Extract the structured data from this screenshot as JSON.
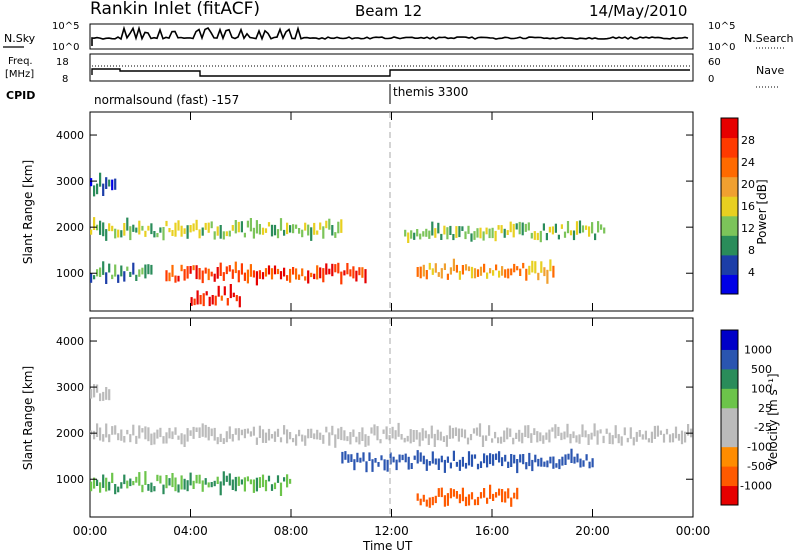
{
  "header": {
    "station": "Rankin Inlet (fitACF)",
    "beam": "Beam 12",
    "date": "14/May/2010"
  },
  "panels": {
    "nsky": {
      "label": "N.Sky",
      "ticks": [
        "10^5",
        "10^0"
      ],
      "right_label": "N.Search",
      "right_ticks": [
        "10^5",
        "10^0"
      ]
    },
    "freq": {
      "label_line1": "Freq.",
      "label_line2": "[MHz]",
      "ticks": [
        "18",
        "8"
      ],
      "right_label": "Nave",
      "right_ticks": [
        "60",
        "0"
      ]
    },
    "cpid": {
      "label": "CPID",
      "segments": [
        "normalsound (fast) -157",
        "themis 3300"
      ]
    }
  },
  "colors": {
    "power": [
      "#0000e6",
      "#1c3ea8",
      "#2a8c5a",
      "#7cc45a",
      "#e8d020",
      "#f0a030",
      "#ff6a00",
      "#ff3a00",
      "#e60000"
    ],
    "velocity": [
      "#0000c8",
      "#2a55b0",
      "#2a8c5a",
      "#6cc44a",
      "#bbbbbb",
      "#bbbbbb",
      "#ff8c00",
      "#ff5a00",
      "#e60000"
    ]
  },
  "chart_data": [
    {
      "type": "heatmap",
      "title": "Power",
      "xlabel": "Time UT",
      "ylabel": "Slant Range [km]",
      "x_ticks": [
        "00:00",
        "04:00",
        "08:00",
        "12:00",
        "16:00",
        "20:00",
        "00:00"
      ],
      "y_ticks": [
        1000,
        2000,
        3000,
        4000
      ],
      "ylim": [
        180,
        4500
      ],
      "colorbar": {
        "label": "Power [dB]",
        "ticks": [
          4,
          8,
          12,
          16,
          20,
          24,
          28
        ]
      },
      "echo_regions": [
        {
          "range_km": 1000,
          "start_h": 0,
          "end_h": 2.5,
          "value": 10
        },
        {
          "range_km": 1950,
          "start_h": 0,
          "end_h": 10,
          "value": 14
        },
        {
          "range_km": 1900,
          "start_h": 12.5,
          "end_h": 20.5,
          "value": 13
        },
        {
          "range_km": 1000,
          "start_h": 3,
          "end_h": 11,
          "value": 26
        },
        {
          "range_km": 500,
          "start_h": 4,
          "end_h": 6,
          "value": 28
        },
        {
          "range_km": 1050,
          "start_h": 13,
          "end_h": 18.5,
          "value": 20
        },
        {
          "range_km": 2900,
          "start_h": 0,
          "end_h": 1,
          "value": 8
        }
      ]
    },
    {
      "type": "heatmap",
      "title": "Velocity",
      "xlabel": "Time UT",
      "ylabel": "Slant Range [km]",
      "x_ticks": [
        "00:00",
        "04:00",
        "08:00",
        "12:00",
        "16:00",
        "20:00",
        "00:00"
      ],
      "y_ticks": [
        1000,
        2000,
        3000,
        4000
      ],
      "ylim": [
        180,
        4500
      ],
      "colorbar": {
        "label": "Velocity [m s⁻¹]",
        "ticks": [
          1000,
          500,
          100,
          25,
          -25,
          -100,
          -500,
          -1000
        ]
      },
      "echo_regions": [
        {
          "range_km": 1950,
          "start_h": 0,
          "end_h": 24,
          "value": 0
        },
        {
          "range_km": 1400,
          "start_h": 10,
          "end_h": 20,
          "value": 300
        },
        {
          "range_km": 900,
          "start_h": 0,
          "end_h": 8,
          "value": 60
        },
        {
          "range_km": 600,
          "start_h": 13,
          "end_h": 17,
          "value": -200
        },
        {
          "range_km": 2900,
          "start_h": 0,
          "end_h": 0.8,
          "value": 0
        }
      ]
    }
  ]
}
